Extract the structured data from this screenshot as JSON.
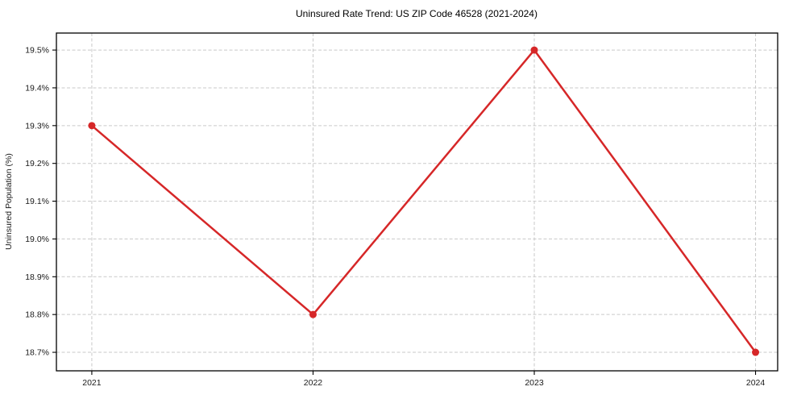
{
  "chart_data": {
    "type": "line",
    "title": "Uninsured Rate Trend: US ZIP Code 46528 (2021-2024)",
    "xlabel": "",
    "ylabel": "Uninsured Population (%)",
    "categories": [
      2021,
      2022,
      2023,
      2024
    ],
    "x_tick_labels": [
      "2021",
      "2022",
      "2023",
      "2024"
    ],
    "values": [
      19.3,
      18.8,
      19.5,
      18.7
    ],
    "y_ticks": [
      18.7,
      18.8,
      18.9,
      19.0,
      19.1,
      19.2,
      19.3,
      19.4,
      19.5
    ],
    "y_tick_labels": [
      "18.7%",
      "18.8%",
      "18.9%",
      "19.0%",
      "19.1%",
      "19.2%",
      "19.3%",
      "19.4%",
      "19.5%"
    ],
    "xlim": [
      2020.84,
      2024.1
    ],
    "ylim": [
      18.651,
      19.545
    ],
    "grid": true,
    "legend_position": "none",
    "line_color": "#d62728",
    "marker": "circle",
    "marker_size": 9,
    "grid_color": "#c9c9c9",
    "axis_color": "#000000",
    "label_color": "#1a1a1a"
  }
}
